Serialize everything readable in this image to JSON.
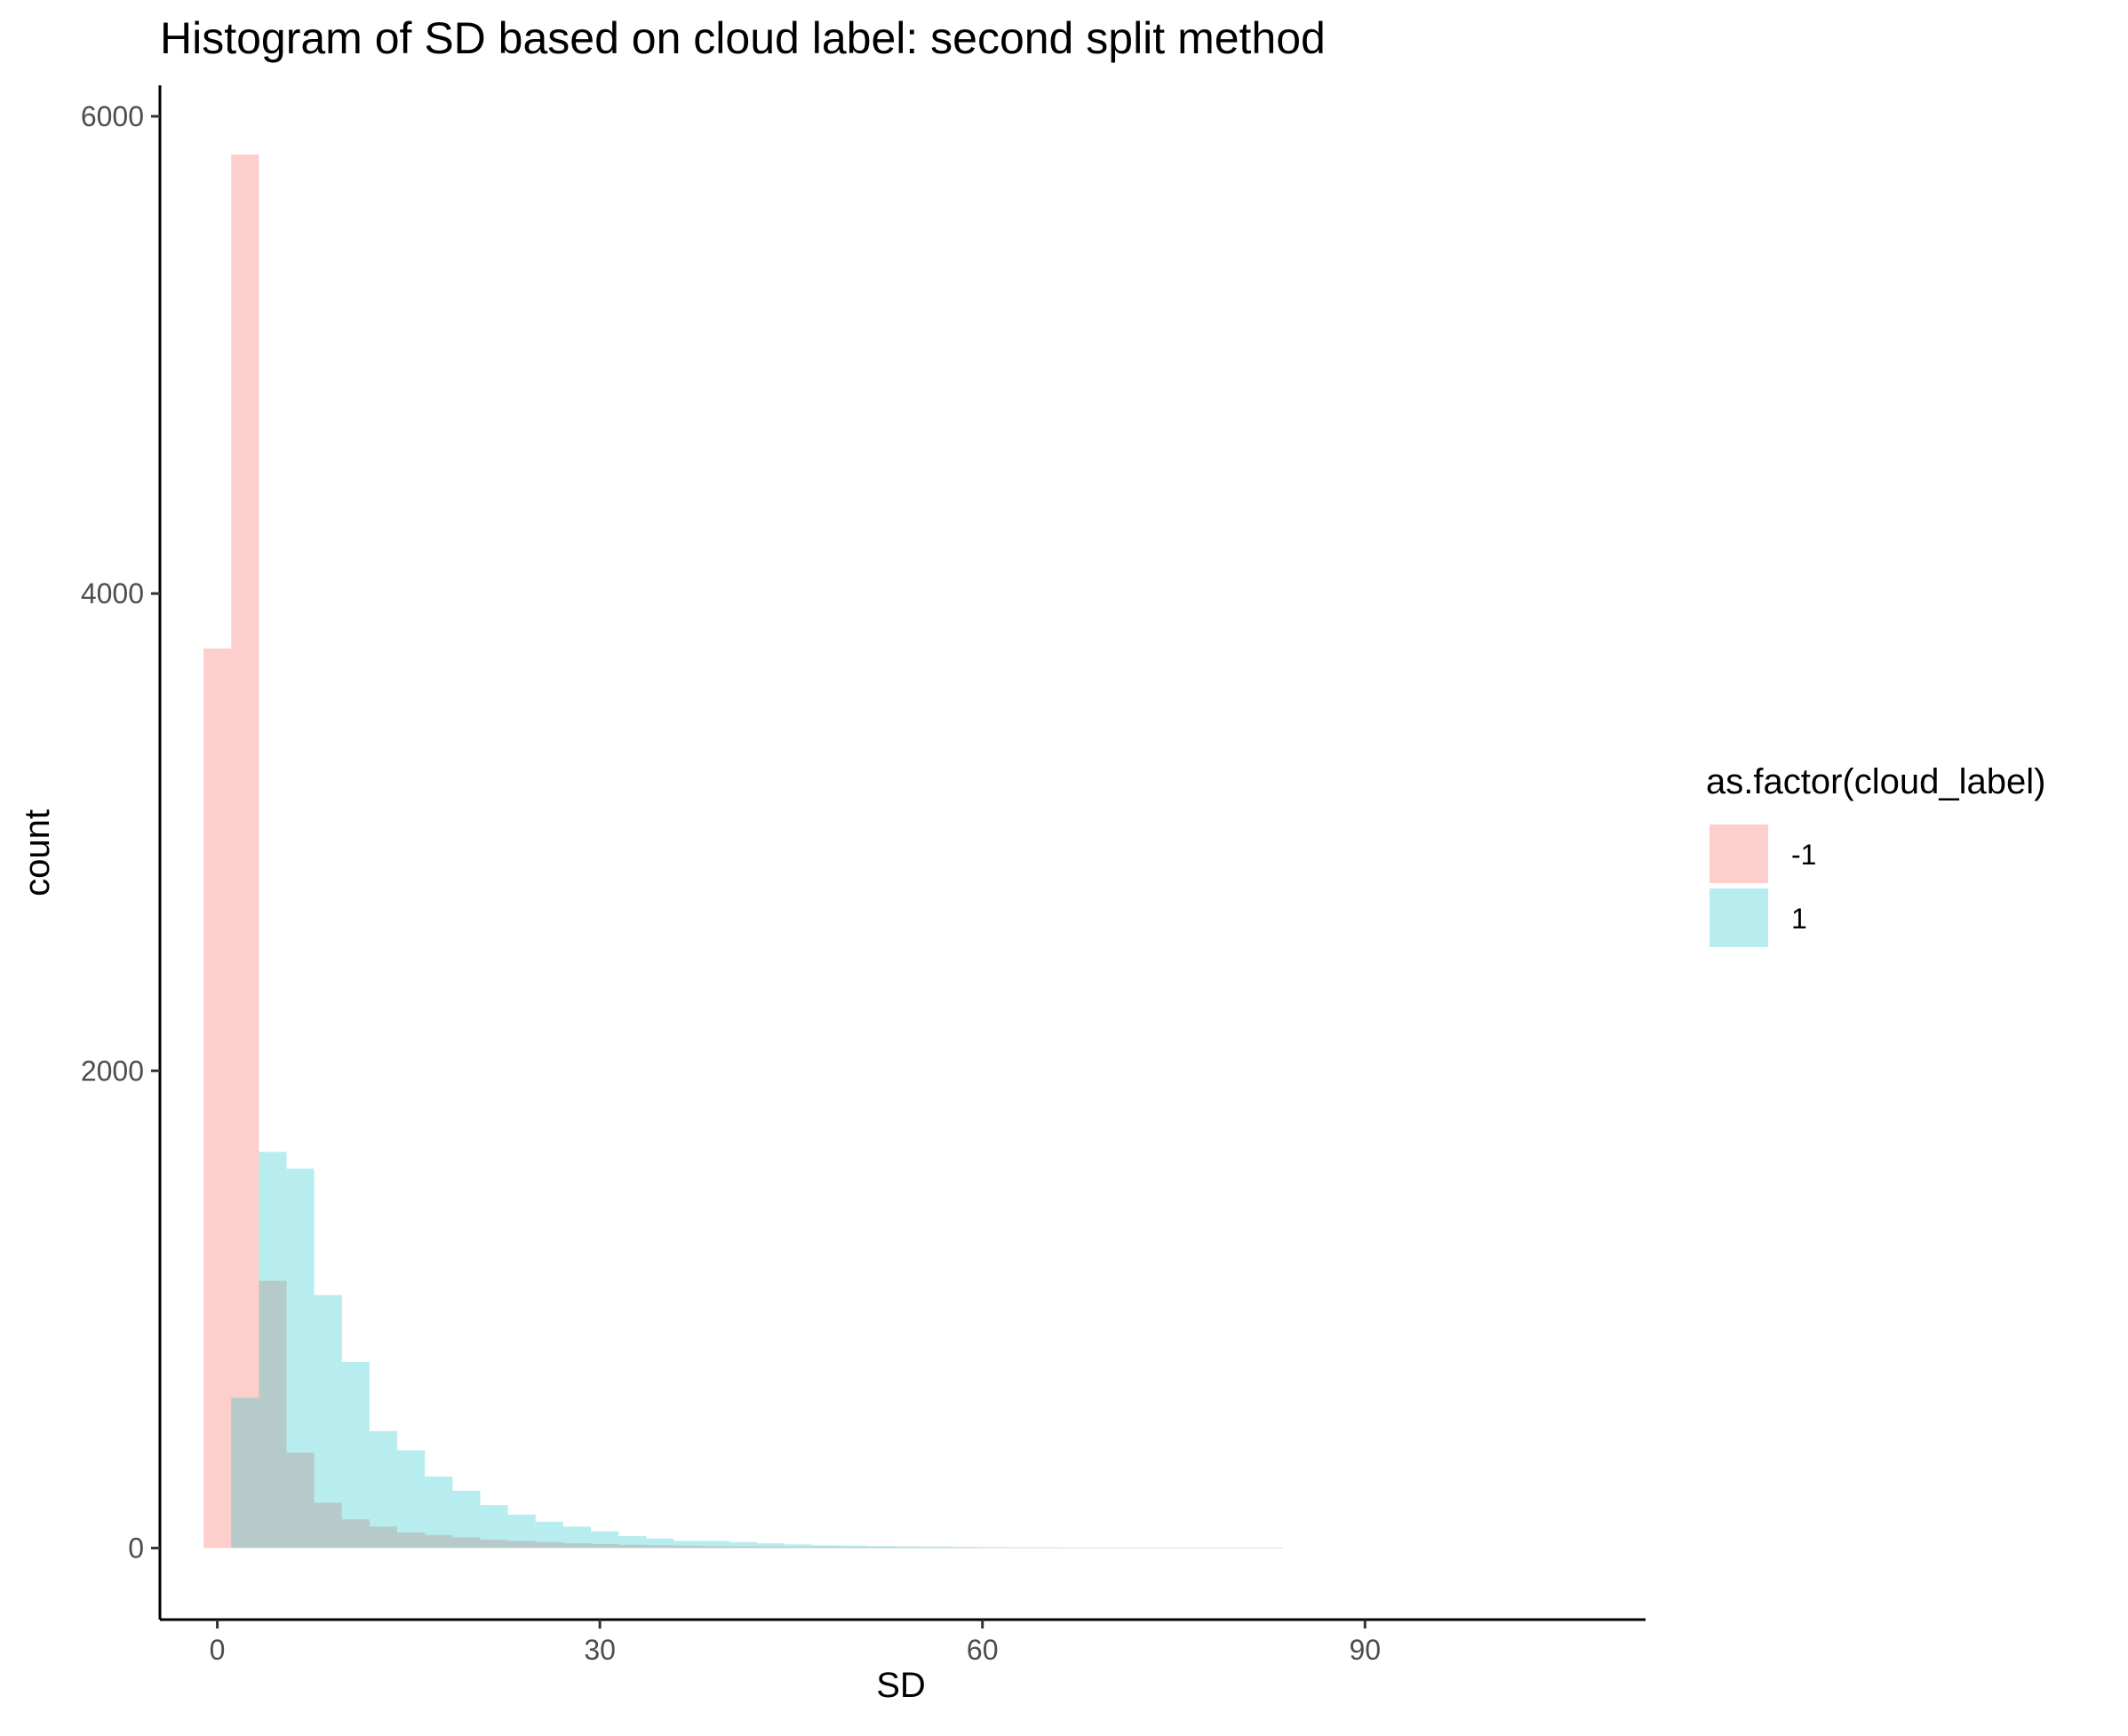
{
  "chart_data": {
    "type": "bar",
    "title": "Histogram of SD based on cloud label: second split method",
    "xlabel": "SD",
    "ylabel": "count",
    "xlim": [
      -4.5,
      112
    ],
    "ylim": [
      -300,
      6130
    ],
    "xticks": [
      0,
      30,
      60,
      90
    ],
    "yticks": [
      0,
      2000,
      4000,
      6000
    ],
    "bin_width": 2.17,
    "legend": {
      "title": "as.factor(cloud_label)",
      "placement": "right"
    },
    "grid": false,
    "series": [
      {
        "name": "-1",
        "color": "#F8766D",
        "opacity": 0.35,
        "bin_starts": [
          -1.08,
          1.09,
          3.26,
          5.43,
          7.6,
          9.77,
          11.94,
          14.11,
          16.28,
          18.45,
          20.62,
          22.79,
          24.96,
          27.13,
          29.3,
          31.47,
          33.64,
          35.81,
          37.98,
          40.15,
          42.32,
          44.49,
          46.66,
          48.83,
          51.0,
          53.17,
          55.34,
          57.51,
          59.68,
          61.85,
          64.02,
          66.19,
          68.36,
          70.53,
          72.7,
          74.87,
          77.04,
          79.21,
          81.38,
          83.55,
          85.72,
          87.89,
          90.06,
          92.23,
          94.4,
          96.57,
          98.74,
          100.91,
          103.08,
          105.25
        ],
        "values": [
          3770,
          5840,
          1120,
          400,
          190,
          120,
          90,
          65,
          55,
          45,
          35,
          30,
          25,
          20,
          17,
          14,
          12,
          10,
          8,
          7,
          6,
          5,
          5,
          4,
          4,
          3,
          3,
          3,
          2,
          2,
          2,
          2,
          1,
          1,
          1,
          1,
          1,
          1,
          1,
          0,
          0,
          0,
          0,
          0,
          0,
          0,
          0,
          0,
          0,
          0
        ]
      },
      {
        "name": "1",
        "color": "#00BFC4",
        "opacity": 0.28,
        "bin_starts": [
          1.09,
          3.26,
          5.43,
          7.6,
          9.77,
          11.94,
          14.11,
          16.28,
          18.45,
          20.62,
          22.79,
          24.96,
          27.13,
          29.3,
          31.47,
          33.64,
          35.81,
          37.98,
          40.15,
          42.32,
          44.49,
          46.66,
          48.83,
          51.0,
          53.17,
          55.34,
          57.51,
          59.68,
          61.85,
          64.02,
          66.19,
          68.36,
          70.53,
          72.7,
          74.87,
          77.04,
          79.21,
          81.38,
          83.55,
          85.72,
          87.89,
          90.06,
          92.23,
          94.4,
          96.57,
          98.74,
          100.91,
          103.08,
          105.25
        ],
        "values": [
          630,
          1660,
          1590,
          1060,
          780,
          490,
          410,
          300,
          240,
          180,
          140,
          110,
          90,
          70,
          50,
          40,
          30,
          30,
          25,
          20,
          15,
          12,
          10,
          8,
          7,
          6,
          5,
          4,
          3,
          3,
          2,
          2,
          2,
          1,
          1,
          1,
          1,
          1,
          0,
          0,
          0,
          0,
          0,
          0,
          0,
          0,
          0,
          0,
          0
        ]
      }
    ]
  }
}
